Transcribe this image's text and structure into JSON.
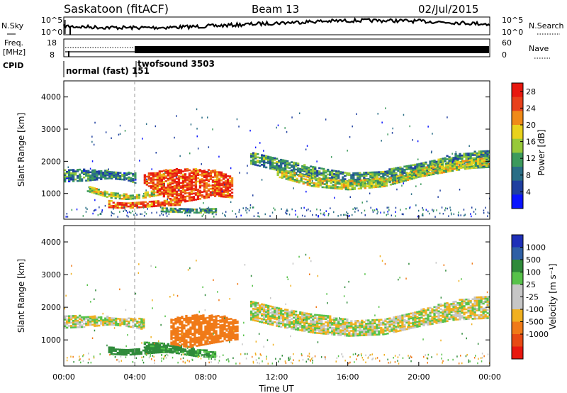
{
  "header": {
    "station": "Saskatoon (fitACF)",
    "beam": "Beam 13",
    "date": "02/Jul/2015"
  },
  "noise_panel": {
    "left_label": "N.Sky",
    "right_label": "N.Search",
    "left_ticks": [
      "10^5",
      "10^0"
    ],
    "right_ticks": [
      "10^5",
      "10^0"
    ]
  },
  "freq_panel": {
    "left_label_line1": "Freq.",
    "left_label_line2": "[MHz]",
    "right_label": "Nave",
    "left_ticks": [
      "18",
      "8"
    ],
    "right_ticks": [
      "60",
      "0"
    ]
  },
  "cpid_panel": {
    "label": "CPID",
    "modes": [
      {
        "text": "normal (fast) 151",
        "start_hour": 0
      },
      {
        "text": "twofsound 3503",
        "start_hour": 4
      }
    ]
  },
  "colors": {
    "power": [
      "#0a14ff",
      "#1f3fa0",
      "#2a6e86",
      "#3c9a5c",
      "#97c93a",
      "#e9d21d",
      "#f08a18",
      "#e8411b",
      "#e8180f"
    ],
    "velocity": [
      "#1e2fb8",
      "#2f5fa5",
      "#2f8a3a",
      "#57c24a",
      "#c6c6c6",
      "#c6c6c6",
      "#f0b020",
      "#f07a18",
      "#e84a14",
      "#e8180f"
    ]
  },
  "chart_data": [
    {
      "type": "heatmap",
      "name": "power",
      "ylabel": "Slant Range [km]",
      "ylim": [
        200,
        4500
      ],
      "yticks": [
        "4000",
        "3000",
        "2000",
        "1000"
      ],
      "xlim_hours": [
        0,
        24
      ],
      "colorbar_label": "Power [dB]",
      "colorbar_ticks": [
        "28",
        "24",
        "20",
        "16",
        "12",
        "8",
        "4"
      ],
      "colorbar_range": [
        0,
        30
      ],
      "bands": [
        {
          "t": [
            0.0,
            1.3,
            2.5,
            3.5,
            4.0
          ],
          "r_lo": [
            1350,
            1380,
            1450,
            1400,
            1300
          ],
          "r_hi": [
            1750,
            1720,
            1700,
            1650,
            1650
          ],
          "power": 9
        },
        {
          "t": [
            1.3,
            2.5,
            3.5,
            4.5,
            5.5
          ],
          "r_lo": [
            1050,
            850,
            800,
            850,
            950
          ],
          "r_hi": [
            1250,
            1050,
            950,
            1000,
            1150
          ],
          "power": 16
        },
        {
          "t": [
            2.5,
            3.5,
            4.5,
            5.5,
            6.5
          ],
          "r_lo": [
            550,
            520,
            560,
            600,
            620
          ],
          "r_hi": [
            760,
            700,
            720,
            760,
            780
          ],
          "power": 24
        },
        {
          "t": [
            4.5,
            5.5,
            6.5,
            7.5,
            8.5,
            9.5
          ],
          "r_lo": [
            1300,
            900,
            700,
            800,
            900,
            850
          ],
          "r_hi": [
            1600,
            1700,
            1750,
            1750,
            1700,
            1500
          ],
          "power": 25
        },
        {
          "t": [
            5.5,
            6.5,
            7.5,
            8.5
          ],
          "r_lo": [
            420,
            400,
            380,
            400
          ],
          "r_hi": [
            560,
            520,
            500,
            500
          ],
          "power": 12
        },
        {
          "t": [
            10.5,
            12,
            14,
            16,
            18,
            20,
            22,
            24
          ],
          "r_lo": [
            1900,
            1700,
            1450,
            1250,
            1300,
            1500,
            1750,
            1800
          ],
          "r_hi": [
            2250,
            2100,
            1850,
            1650,
            1700,
            1950,
            2200,
            2350
          ],
          "power": 11
        },
        {
          "t": [
            12,
            14,
            16,
            18,
            20,
            22,
            24
          ],
          "r_lo": [
            1500,
            1200,
            1100,
            1200,
            1500,
            1700,
            1850
          ],
          "r_hi": [
            1800,
            1500,
            1400,
            1450,
            1750,
            2000,
            2150
          ],
          "power": 16
        }
      ]
    },
    {
      "type": "heatmap",
      "name": "velocity",
      "ylabel": "Slant Range [km]",
      "ylim": [
        200,
        4500
      ],
      "yticks": [
        "4000",
        "3000",
        "2000",
        "1000"
      ],
      "xlim_hours": [
        0,
        24
      ],
      "xticks": [
        "00:00",
        "04:00",
        "08:00",
        "12:00",
        "16:00",
        "20:00",
        "00:00"
      ],
      "xlabel": "Time UT",
      "colorbar_label": "Velocity [m s⁻¹]",
      "colorbar_ticks": [
        "1000",
        "500",
        "100",
        "25",
        "-25",
        "-100",
        "-500",
        "-1000"
      ],
      "bands": [
        {
          "t": [
            0.0,
            1.3,
            2.5,
            3.5,
            4.5
          ],
          "r_lo": [
            1350,
            1380,
            1450,
            1400,
            1300
          ],
          "r_hi": [
            1750,
            1720,
            1700,
            1650,
            1650
          ],
          "velocity": 0
        },
        {
          "t": [
            2.5,
            3.5,
            4.5,
            5.5,
            6.5
          ],
          "r_lo": [
            550,
            520,
            560,
            600,
            620
          ],
          "r_hi": [
            760,
            700,
            720,
            760,
            780
          ],
          "velocity": 200
        },
        {
          "t": [
            4.5,
            5.5,
            6.5,
            7.5,
            8.5
          ],
          "r_lo": [
            650,
            620,
            560,
            470,
            450
          ],
          "r_hi": [
            950,
            900,
            850,
            700,
            620
          ],
          "velocity": 150
        },
        {
          "t": [
            6.0,
            7.0,
            8.0,
            9.0,
            9.8
          ],
          "r_lo": [
            850,
            750,
            850,
            950,
            1000
          ],
          "r_hi": [
            1650,
            1750,
            1750,
            1700,
            1550
          ],
          "velocity": -250
        },
        {
          "t": [
            10.5,
            12,
            14,
            16,
            18,
            20,
            22,
            24
          ],
          "r_lo": [
            1600,
            1400,
            1200,
            1100,
            1150,
            1400,
            1600,
            1650
          ],
          "r_hi": [
            2200,
            2000,
            1800,
            1600,
            1650,
            1900,
            2200,
            2350
          ],
          "velocity": 0
        }
      ]
    }
  ]
}
